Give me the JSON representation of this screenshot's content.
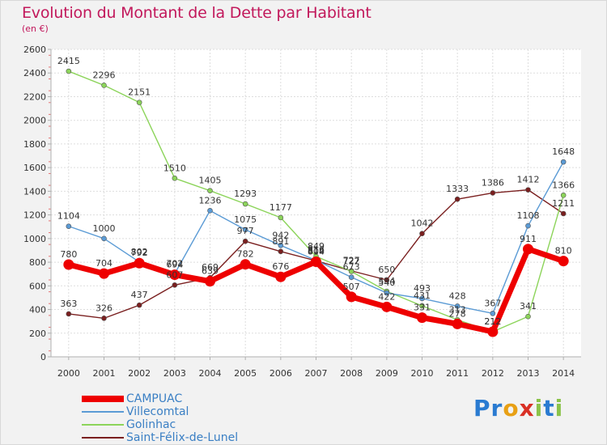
{
  "header": {
    "title": "Evolution du Montant de la Dette par Habitant",
    "subtitle": "(en €)"
  },
  "logo": {
    "text": "Proxiti",
    "letters": [
      "P",
      "r",
      "o",
      "x",
      "i",
      "t",
      "i"
    ],
    "colors": [
      "#2a7bd1",
      "#2a7bd1",
      "#e8a015",
      "#d93025",
      "#8bc34a",
      "#2a7bd1",
      "#8bc34a"
    ]
  },
  "chart_data": {
    "type": "line",
    "title": "Evolution du Montant de la Dette par Habitant",
    "subtitle": "(en €)",
    "xlabel": "",
    "ylabel": "",
    "categories": [
      "2000",
      "2001",
      "2002",
      "2003",
      "2004",
      "2005",
      "2006",
      "2007",
      "2008",
      "2009",
      "2010",
      "2011",
      "2012",
      "2013",
      "2014"
    ],
    "ylim": [
      0,
      2600
    ],
    "yticks": [
      0,
      200,
      400,
      600,
      800,
      1000,
      1200,
      1400,
      1600,
      1800,
      2000,
      2200,
      2400,
      2600
    ],
    "grid": true,
    "legend_position": "bottom-left",
    "series": [
      {
        "name": "CAMPUAC",
        "color": "#ee0000",
        "values": [
          780,
          704,
          792,
          694,
          639,
          782,
          676,
          804,
          507,
          422,
          331,
          278,
          212,
          911,
          810
        ]
      },
      {
        "name": "Villecomtal",
        "color": "#5b9bd5",
        "values": [
          1104,
          1000,
          802,
          702,
          1236,
          1075,
          942,
          816,
          673,
          540,
          493,
          428,
          367,
          1108,
          1648
        ]
      },
      {
        "name": "Golinhac",
        "color": "#8cd45a",
        "values": [
          2415,
          2296,
          2151,
          1510,
          1405,
          1293,
          1177,
          849,
          722,
          554,
          431,
          313,
          212,
          341,
          1366
        ]
      },
      {
        "name": "Saint-Félix-de-Lunel",
        "color": "#7a1f1f",
        "values": [
          363,
          326,
          437,
          607,
          669,
          977,
          891,
          812,
          727,
          650,
          1042,
          1333,
          1386,
          1412,
          1211
        ]
      }
    ]
  }
}
